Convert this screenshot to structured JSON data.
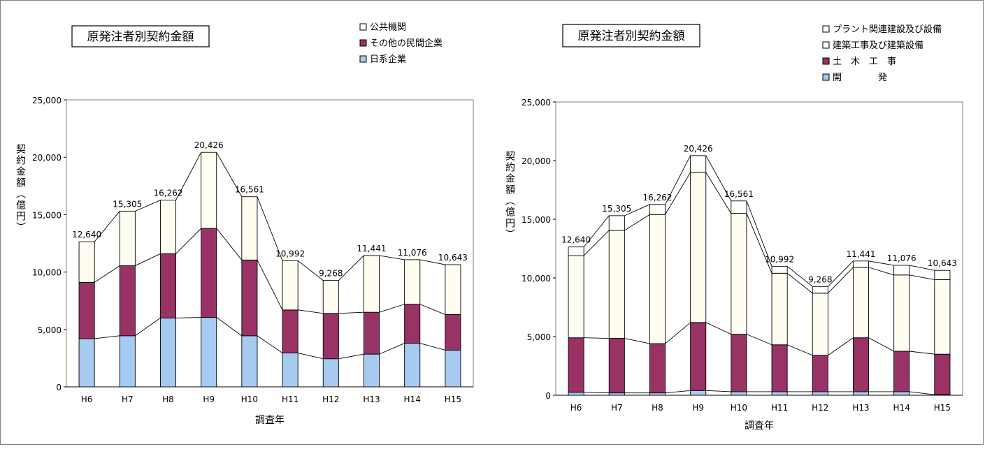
{
  "chart_data": [
    {
      "type": "bar",
      "stacked": true,
      "title": "原発注者別契約金額",
      "xlabel": "調査年",
      "ylabel": "契約金額（億円）",
      "ylim": [
        0,
        25000
      ],
      "yticks": [
        "0",
        "5,000",
        "10,000",
        "15,000",
        "20,000",
        "25,000"
      ],
      "categories": [
        "H6",
        "H7",
        "H8",
        "H9",
        "H10",
        "H11",
        "H12",
        "H13",
        "H14",
        "H15"
      ],
      "series": [
        {
          "name": "日系企業",
          "color": "#a6caf0",
          "values": [
            4200,
            4450,
            6000,
            6050,
            4450,
            2950,
            2450,
            2850,
            3800,
            3200
          ]
        },
        {
          "name": "その他の民間企業",
          "color": "#993366",
          "values": [
            4900,
            6100,
            5600,
            7750,
            6600,
            3750,
            3950,
            3650,
            3400,
            3100
          ]
        },
        {
          "name": "公共機関",
          "color": "#fffcf0",
          "values": [
            3540,
            4755,
            4662,
            6626,
            5511,
            4292,
            2868,
            4941,
            3876,
            4343
          ]
        }
      ],
      "totals": [
        "12,640",
        "15,305",
        "16,262",
        "20,426",
        "16,561",
        "10,992",
        "9,268",
        "11,441",
        "11,076",
        "10,643"
      ],
      "legend": [
        "公共機関",
        "その他の民間企業",
        "日系企業"
      ]
    },
    {
      "type": "bar",
      "stacked": true,
      "title": "原発注者別契約金額",
      "xlabel": "調査年",
      "ylabel": "契約金額（億円）",
      "ylim": [
        0,
        25000
      ],
      "yticks": [
        "0",
        "5,000",
        "10,000",
        "15,000",
        "20,000",
        "25,000"
      ],
      "categories": [
        "H6",
        "H7",
        "H8",
        "H9",
        "H10",
        "H11",
        "H12",
        "H13",
        "H14",
        "H15"
      ],
      "series": [
        {
          "name": "開　　　　発",
          "color": "#a6caf0",
          "values": [
            250,
            200,
            200,
            400,
            300,
            300,
            300,
            300,
            300,
            50
          ]
        },
        {
          "name": "土　木　工　事",
          "color": "#993366",
          "values": [
            4650,
            4650,
            4200,
            5800,
            4900,
            4000,
            3100,
            4600,
            3450,
            3450
          ]
        },
        {
          "name": "建築工事及び建築設備",
          "color": "#fffcf0",
          "values": [
            7000,
            9200,
            11000,
            12800,
            10300,
            6100,
            5300,
            6000,
            6500,
            6350
          ]
        },
        {
          "name": "プラント関連建設及び設備",
          "color": "#ffffff",
          "values": [
            740,
            1255,
            862,
            1426,
            1061,
            592,
            568,
            541,
            826,
            793
          ]
        }
      ],
      "totals": [
        "12,640",
        "15,305",
        "16,262",
        "20,426",
        "16,561",
        "10,992",
        "9,268",
        "11,441",
        "11,076",
        "10,643"
      ],
      "legend": [
        "プラント関連建設及び設備",
        "建築工事及び建築設備",
        "土　木　工　事",
        "開　　　　発"
      ]
    }
  ]
}
